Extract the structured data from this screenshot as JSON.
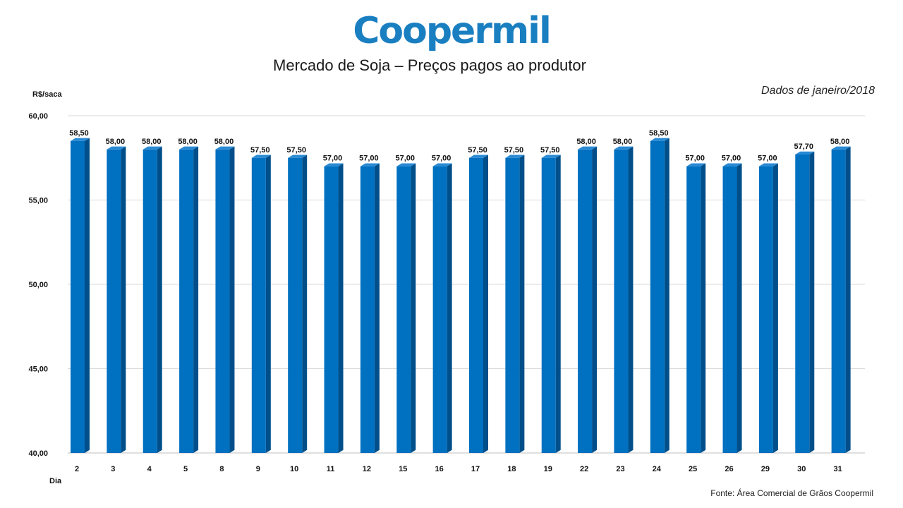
{
  "logo": {
    "text": "Coopermil",
    "color": "#1a7fc1"
  },
  "source": "Fonte:  Área Comercial de Grãos Coopermil",
  "chart_data": {
    "type": "bar",
    "title": "Mercado de Soja – Preços pagos ao produtor",
    "subtitle": "Dados de janeiro/2018",
    "xlabel": "Dia",
    "ylabel": "R$/saca",
    "ylim": [
      40,
      60
    ],
    "yticks": [
      "60,00",
      "55,00",
      "50,00",
      "45,00",
      "40,00"
    ],
    "categories": [
      "2",
      "3",
      "4",
      "5",
      "8",
      "9",
      "10",
      "11",
      "12",
      "15",
      "16",
      "17",
      "18",
      "19",
      "22",
      "23",
      "24",
      "25",
      "26",
      "29",
      "30",
      "31"
    ],
    "values": [
      58.5,
      58.0,
      58.0,
      58.0,
      58.0,
      57.5,
      57.5,
      57.0,
      57.0,
      57.0,
      57.0,
      57.5,
      57.5,
      57.5,
      58.0,
      58.0,
      58.5,
      57.0,
      57.0,
      57.0,
      57.7,
      58.0
    ],
    "value_labels": [
      "58,50",
      "58,00",
      "58,00",
      "58,00",
      "58,00",
      "57,50",
      "57,50",
      "57,00",
      "57,00",
      "57,00",
      "57,00",
      "57,50",
      "57,50",
      "57,50",
      "58,00",
      "58,00",
      "58,50",
      "57,00",
      "57,00",
      "57,00",
      "57,70",
      "58,00"
    ],
    "bar_color": "#0070c0",
    "grid": true,
    "legend": "none"
  }
}
